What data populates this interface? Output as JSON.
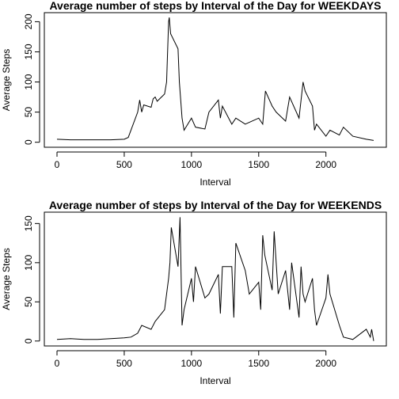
{
  "chart_data": [
    {
      "type": "line",
      "title": "Average number of steps by Interval of the Day for WEEKDAYS",
      "xlabel": "Interval",
      "ylabel": "Average Steps",
      "color": "#000000",
      "x": [
        0,
        100,
        200,
        300,
        400,
        500,
        530,
        550,
        600,
        615,
        630,
        645,
        700,
        715,
        730,
        745,
        800,
        815,
        830,
        835,
        845,
        900,
        910,
        930,
        945,
        1000,
        1030,
        1100,
        1130,
        1200,
        1215,
        1230,
        1300,
        1330,
        1400,
        1500,
        1530,
        1550,
        1600,
        1630,
        1700,
        1730,
        1800,
        1830,
        1845,
        1900,
        1915,
        1930,
        2000,
        2030,
        2100,
        2130,
        2200,
        2300,
        2355
      ],
      "values": [
        5,
        4,
        4,
        4,
        4,
        5,
        8,
        20,
        50,
        70,
        50,
        62,
        58,
        72,
        75,
        68,
        80,
        100,
        200,
        207,
        180,
        155,
        100,
        40,
        20,
        40,
        25,
        22,
        50,
        70,
        40,
        60,
        30,
        40,
        30,
        40,
        30,
        85,
        60,
        50,
        35,
        75,
        40,
        100,
        85,
        60,
        20,
        30,
        10,
        20,
        12,
        25,
        10,
        5,
        3
      ],
      "xlim": [
        -94.2,
        2449.2
      ],
      "ylim": [
        -8.3,
        215
      ],
      "xticks": [
        0,
        500,
        1000,
        1500,
        2000
      ],
      "yticks": [
        0,
        50,
        100,
        150,
        200
      ]
    },
    {
      "type": "line",
      "title": "Average number of steps by Interval of the Day for WEEKENDS",
      "xlabel": "Interval",
      "ylabel": "Average Steps",
      "color": "#000000",
      "x": [
        0,
        100,
        200,
        300,
        400,
        500,
        550,
        600,
        630,
        700,
        730,
        800,
        830,
        840,
        850,
        900,
        915,
        930,
        945,
        1000,
        1015,
        1030,
        1100,
        1130,
        1200,
        1215,
        1230,
        1300,
        1315,
        1330,
        1400,
        1430,
        1500,
        1515,
        1530,
        1545,
        1600,
        1615,
        1630,
        1645,
        1700,
        1730,
        1745,
        1800,
        1815,
        1830,
        1845,
        1900,
        1915,
        1930,
        2000,
        2015,
        2030,
        2100,
        2130,
        2200,
        2300,
        2330,
        2340,
        2355
      ],
      "values": [
        2,
        3,
        2,
        2,
        3,
        4,
        5,
        10,
        20,
        15,
        25,
        40,
        80,
        100,
        145,
        95,
        158,
        20,
        40,
        80,
        50,
        95,
        55,
        60,
        85,
        35,
        95,
        95,
        30,
        125,
        90,
        60,
        75,
        40,
        135,
        110,
        65,
        140,
        100,
        60,
        90,
        40,
        100,
        30,
        95,
        60,
        50,
        80,
        40,
        20,
        55,
        85,
        60,
        20,
        5,
        2,
        15,
        5,
        15,
        0
      ],
      "xlim": [
        -94.2,
        2449.2
      ],
      "ylim": [
        -6.3,
        164.5
      ],
      "xticks": [
        0,
        500,
        1000,
        1500,
        2000
      ],
      "yticks": [
        0,
        50,
        100,
        150
      ]
    }
  ]
}
